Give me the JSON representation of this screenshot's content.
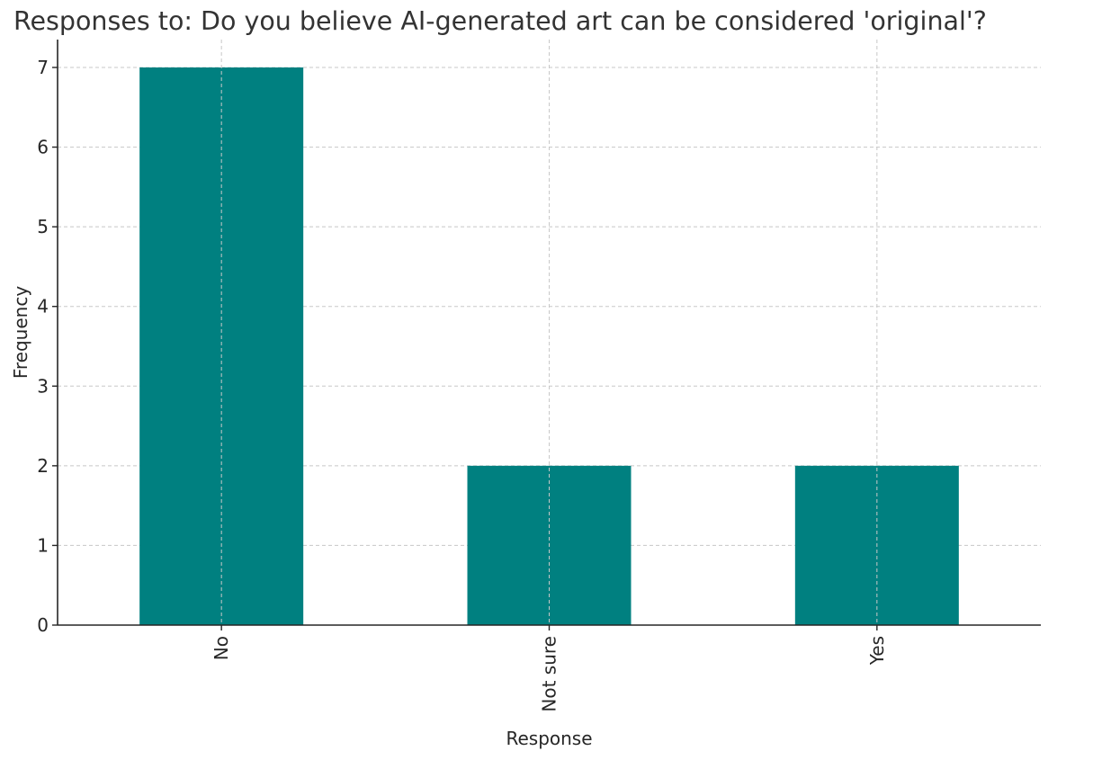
{
  "chart_data": {
    "type": "bar",
    "title": "Responses to: Do you believe AI-generated art can be considered 'original'?",
    "xlabel": "Response",
    "ylabel": "Frequency",
    "categories": [
      "No",
      "Not sure",
      "Yes"
    ],
    "values": [
      7,
      2,
      2
    ],
    "ylim": [
      0,
      7.35
    ],
    "yticks": [
      "0",
      "1",
      "2",
      "3",
      "4",
      "5",
      "6",
      "7"
    ],
    "grid": true,
    "legend": "none",
    "bar_color": "#008080",
    "grid_color": "#c8c8c8",
    "axis_color": "#262626"
  }
}
